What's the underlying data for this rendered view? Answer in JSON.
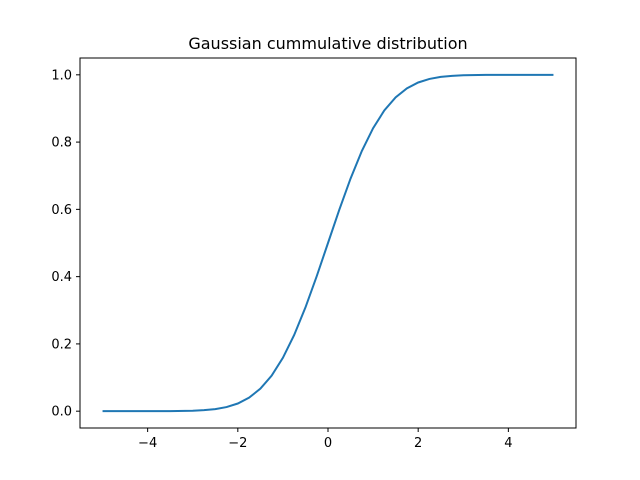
{
  "chart_data": {
    "type": "line",
    "title": "Gaussian cummulative distribution",
    "xlabel": "",
    "ylabel": "",
    "xlim": [
      -5.5,
      5.5
    ],
    "ylim": [
      -0.05,
      1.05
    ],
    "x_ticks": [
      -4,
      -2,
      0,
      2,
      4
    ],
    "x_tick_labels": [
      "−4",
      "−2",
      "0",
      "2",
      "4"
    ],
    "y_ticks": [
      0.0,
      0.2,
      0.4,
      0.6,
      0.8,
      1.0
    ],
    "y_tick_labels": [
      "0.0",
      "0.2",
      "0.4",
      "0.6",
      "0.8",
      "1.0"
    ],
    "grid": false,
    "legend": "none",
    "series": [
      {
        "color": "#1f77b4",
        "x": [
          -5.0,
          -4.5,
          -4.0,
          -3.5,
          -3.0,
          -2.75,
          -2.5,
          -2.25,
          -2.0,
          -1.75,
          -1.5,
          -1.25,
          -1.0,
          -0.75,
          -0.5,
          -0.25,
          0.0,
          0.25,
          0.5,
          0.75,
          1.0,
          1.25,
          1.5,
          1.75,
          2.0,
          2.25,
          2.5,
          2.75,
          3.0,
          3.5,
          4.0,
          4.5,
          5.0
        ],
        "y": [
          0.0,
          0.0,
          0.0,
          0.0002,
          0.0013,
          0.003,
          0.0062,
          0.0122,
          0.0228,
          0.0401,
          0.0668,
          0.1056,
          0.1587,
          0.2266,
          0.3085,
          0.4013,
          0.5,
          0.5987,
          0.6915,
          0.7734,
          0.8413,
          0.8944,
          0.9332,
          0.9599,
          0.9772,
          0.9878,
          0.9938,
          0.997,
          0.9987,
          0.9998,
          1.0,
          1.0,
          1.0
        ]
      }
    ]
  }
}
